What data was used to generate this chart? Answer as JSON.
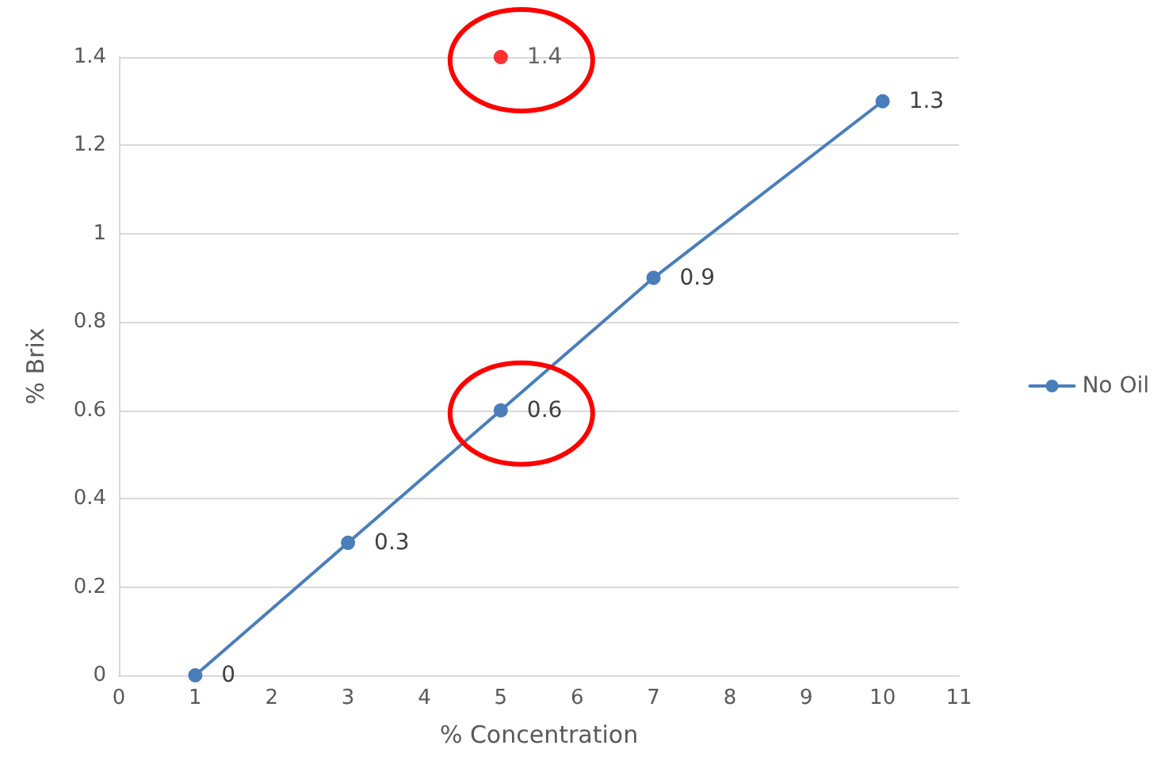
{
  "chart_data": {
    "type": "line",
    "xlabel": "% Concentration",
    "ylabel": "% Brix",
    "series": [
      {
        "name": "No Oil",
        "color": "#4a7ebb",
        "x": [
          1,
          3,
          5,
          7,
          10
        ],
        "values": [
          0,
          0.3,
          0.6,
          0.9,
          1.3
        ]
      },
      {
        "type": "scatter",
        "color": "#ff0000",
        "x": [
          5
        ],
        "values": [
          1.4
        ]
      }
    ],
    "xlim": [
      0,
      11
    ],
    "xticks": [
      0,
      1,
      2,
      3,
      4,
      5,
      6,
      7,
      8,
      9,
      10,
      11
    ],
    "ylim": [
      0,
      1.4
    ],
    "yticks": [
      0,
      0.2,
      0.4,
      0.6,
      0.8,
      1,
      1.2,
      1.4
    ],
    "grid": "y",
    "legend": "right",
    "marker": "circle",
    "line_style": "solid",
    "data_labels": true
  }
}
